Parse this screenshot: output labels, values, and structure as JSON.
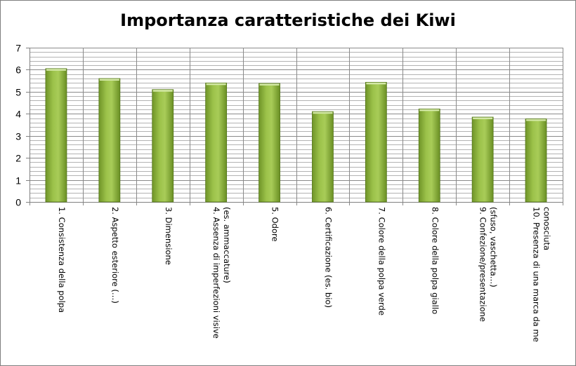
{
  "chart_data": {
    "type": "bar",
    "title": "Importanza caratteristiche dei Kiwi",
    "xlabel": "",
    "ylabel": "",
    "ylim": [
      0,
      7
    ],
    "yticks": [
      "0",
      "1",
      "2",
      "3",
      "4",
      "5",
      "6",
      "7"
    ],
    "grid": true,
    "legend": "none",
    "bar_color": "#8db33a",
    "categories": [
      "1. Consistenza della polpa",
      "2. Aspetto esteriore (…)",
      "3. Dimensione",
      "4. Assenza di imperfezioni visive (es. ammaccature)",
      "5. Odore",
      "6. Certificazione (es. bio)",
      "7. Colore della polpa verde",
      "8. Colore della polpa giallo",
      "9. Confezione/presentazione (sfuso, vaschetta…)",
      "10. Presenza di una marca da me conosciuta"
    ],
    "category_lines": [
      [
        "1. Consistenza della polpa"
      ],
      [
        "2. Aspetto esteriore (…)"
      ],
      [
        "3. Dimensione"
      ],
      [
        "4. Assenza di imperfezioni visive",
        "(es. ammaccature)"
      ],
      [
        "5. Odore"
      ],
      [
        "6. Certificazione (es. bio)"
      ],
      [
        "7. Colore della polpa verde"
      ],
      [
        "8. Colore della polpa giallo"
      ],
      [
        "9. Confezione/presentazione",
        "(sfuso, vaschetta…)"
      ],
      [
        "10. Presenza di una marca da me",
        "conosciuta"
      ]
    ],
    "values": [
      6.05,
      5.6,
      5.1,
      5.4,
      5.38,
      4.1,
      5.43,
      4.22,
      3.85,
      3.77
    ]
  }
}
